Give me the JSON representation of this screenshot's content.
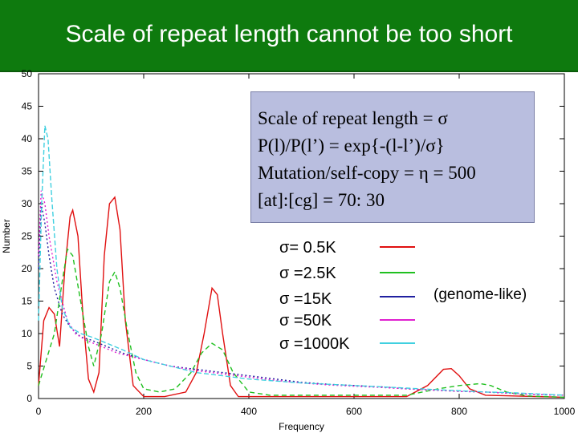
{
  "slide": {
    "title": "Scale of repeat length cannot be too short"
  },
  "note": {
    "lines": [
      "Scale of repeat length = σ",
      " P(l)/P(l’) = exp{-(l-l’)/σ}",
      " Mutation/self-copy = η = 500",
      "[at]:[cg] = 70: 30"
    ]
  },
  "annotation": "(genome-like)",
  "colors": {
    "title_bg": "#0e7a0e",
    "note_bg": "#b9bedf"
  },
  "chart_data": {
    "type": "line",
    "xlabel": "Frequency",
    "ylabel": "Number",
    "xlim": [
      0,
      1000
    ],
    "ylim": [
      0,
      50
    ],
    "xticks": [
      0,
      200,
      400,
      600,
      800,
      1000
    ],
    "yticks": [
      0,
      5,
      10,
      15,
      20,
      25,
      30,
      35,
      40,
      45,
      50
    ],
    "grid": false,
    "legend_position": "center-right",
    "series": [
      {
        "name": "σ= 0.5K",
        "color": "#e01010",
        "dash": "",
        "points": [
          [
            0,
            2
          ],
          [
            10,
            12
          ],
          [
            20,
            14
          ],
          [
            30,
            13
          ],
          [
            40,
            8
          ],
          [
            50,
            20
          ],
          [
            60,
            28
          ],
          [
            65,
            29
          ],
          [
            75,
            25
          ],
          [
            85,
            12
          ],
          [
            95,
            3
          ],
          [
            105,
            1
          ],
          [
            115,
            4
          ],
          [
            125,
            22
          ],
          [
            135,
            30
          ],
          [
            145,
            31
          ],
          [
            155,
            26
          ],
          [
            165,
            12
          ],
          [
            180,
            2
          ],
          [
            200,
            0.3
          ],
          [
            240,
            0.3
          ],
          [
            280,
            1
          ],
          [
            300,
            4
          ],
          [
            315,
            10
          ],
          [
            330,
            17
          ],
          [
            340,
            16
          ],
          [
            350,
            10
          ],
          [
            365,
            2
          ],
          [
            380,
            0.3
          ],
          [
            500,
            0.3
          ],
          [
            700,
            0.3
          ],
          [
            740,
            2
          ],
          [
            770,
            4.5
          ],
          [
            785,
            4.6
          ],
          [
            800,
            3.5
          ],
          [
            820,
            1.5
          ],
          [
            850,
            0.5
          ],
          [
            1000,
            0.2
          ]
        ]
      },
      {
        "name": "σ =2.5K",
        "color": "#20c020",
        "dash": "6 4",
        "points": [
          [
            0,
            2
          ],
          [
            15,
            6
          ],
          [
            30,
            10
          ],
          [
            45,
            18
          ],
          [
            55,
            23
          ],
          [
            65,
            22
          ],
          [
            80,
            15
          ],
          [
            95,
            8
          ],
          [
            105,
            5
          ],
          [
            120,
            10
          ],
          [
            135,
            18
          ],
          [
            145,
            19.5
          ],
          [
            155,
            17
          ],
          [
            170,
            10
          ],
          [
            185,
            4
          ],
          [
            200,
            1.5
          ],
          [
            230,
            1
          ],
          [
            260,
            1.5
          ],
          [
            290,
            4
          ],
          [
            310,
            7
          ],
          [
            330,
            8.5
          ],
          [
            350,
            7.5
          ],
          [
            370,
            4
          ],
          [
            400,
            1
          ],
          [
            440,
            0.5
          ],
          [
            500,
            0.5
          ],
          [
            600,
            0.5
          ],
          [
            700,
            0.5
          ],
          [
            760,
            1.5
          ],
          [
            800,
            2
          ],
          [
            840,
            2.3
          ],
          [
            860,
            2
          ],
          [
            890,
            1
          ],
          [
            930,
            0.4
          ],
          [
            1000,
            0.2
          ]
        ]
      },
      {
        "name": "σ =15K",
        "color": "#2020a0",
        "dash": "2 3",
        "points": [
          [
            0,
            20
          ],
          [
            5,
            30
          ],
          [
            12,
            27
          ],
          [
            20,
            22
          ],
          [
            30,
            17
          ],
          [
            45,
            13
          ],
          [
            60,
            11
          ],
          [
            80,
            9.5
          ],
          [
            100,
            9
          ],
          [
            130,
            8
          ],
          [
            160,
            7
          ],
          [
            200,
            6
          ],
          [
            250,
            5
          ],
          [
            300,
            4.5
          ],
          [
            350,
            4
          ],
          [
            400,
            3.5
          ],
          [
            450,
            3
          ],
          [
            500,
            2.5
          ],
          [
            550,
            2.2
          ],
          [
            600,
            2
          ],
          [
            650,
            1.8
          ],
          [
            700,
            1.5
          ],
          [
            750,
            1.3
          ],
          [
            800,
            1.1
          ],
          [
            850,
            1
          ],
          [
            900,
            0.8
          ],
          [
            950,
            0.6
          ],
          [
            1000,
            0.5
          ]
        ]
      },
      {
        "name": "σ =50K",
        "color": "#e020d0",
        "dash": "2 3",
        "points": [
          [
            0,
            22
          ],
          [
            5,
            32
          ],
          [
            12,
            30
          ],
          [
            20,
            25
          ],
          [
            35,
            18
          ],
          [
            55,
            12
          ],
          [
            70,
            10
          ],
          [
            90,
            9
          ],
          [
            120,
            8
          ],
          [
            150,
            7
          ],
          [
            200,
            6
          ],
          [
            250,
            5
          ],
          [
            300,
            4.3
          ],
          [
            350,
            3.8
          ],
          [
            400,
            3.3
          ],
          [
            450,
            2.8
          ],
          [
            500,
            2.4
          ],
          [
            550,
            2.1
          ],
          [
            600,
            1.9
          ],
          [
            650,
            1.7
          ],
          [
            700,
            1.5
          ],
          [
            750,
            1.3
          ],
          [
            800,
            1.1
          ],
          [
            850,
            1
          ],
          [
            900,
            0.8
          ],
          [
            950,
            0.6
          ],
          [
            1000,
            0.5
          ]
        ]
      },
      {
        "name": "σ =1000K",
        "color": "#40d0e0",
        "dash": "6 3",
        "points": [
          [
            0,
            12
          ],
          [
            6,
            30
          ],
          [
            12,
            42
          ],
          [
            18,
            40
          ],
          [
            25,
            31
          ],
          [
            35,
            20
          ],
          [
            45,
            14
          ],
          [
            60,
            11
          ],
          [
            80,
            10
          ],
          [
            100,
            9.5
          ],
          [
            130,
            8.5
          ],
          [
            160,
            7.5
          ],
          [
            200,
            6
          ],
          [
            250,
            5
          ],
          [
            300,
            4
          ],
          [
            350,
            3.5
          ],
          [
            400,
            3
          ],
          [
            450,
            2.7
          ],
          [
            500,
            2.4
          ],
          [
            550,
            2.2
          ],
          [
            600,
            2
          ],
          [
            650,
            1.8
          ],
          [
            700,
            1.6
          ],
          [
            750,
            1.4
          ],
          [
            800,
            1.2
          ],
          [
            850,
            1
          ],
          [
            900,
            0.9
          ],
          [
            950,
            0.7
          ],
          [
            1000,
            0.5
          ]
        ]
      }
    ]
  }
}
